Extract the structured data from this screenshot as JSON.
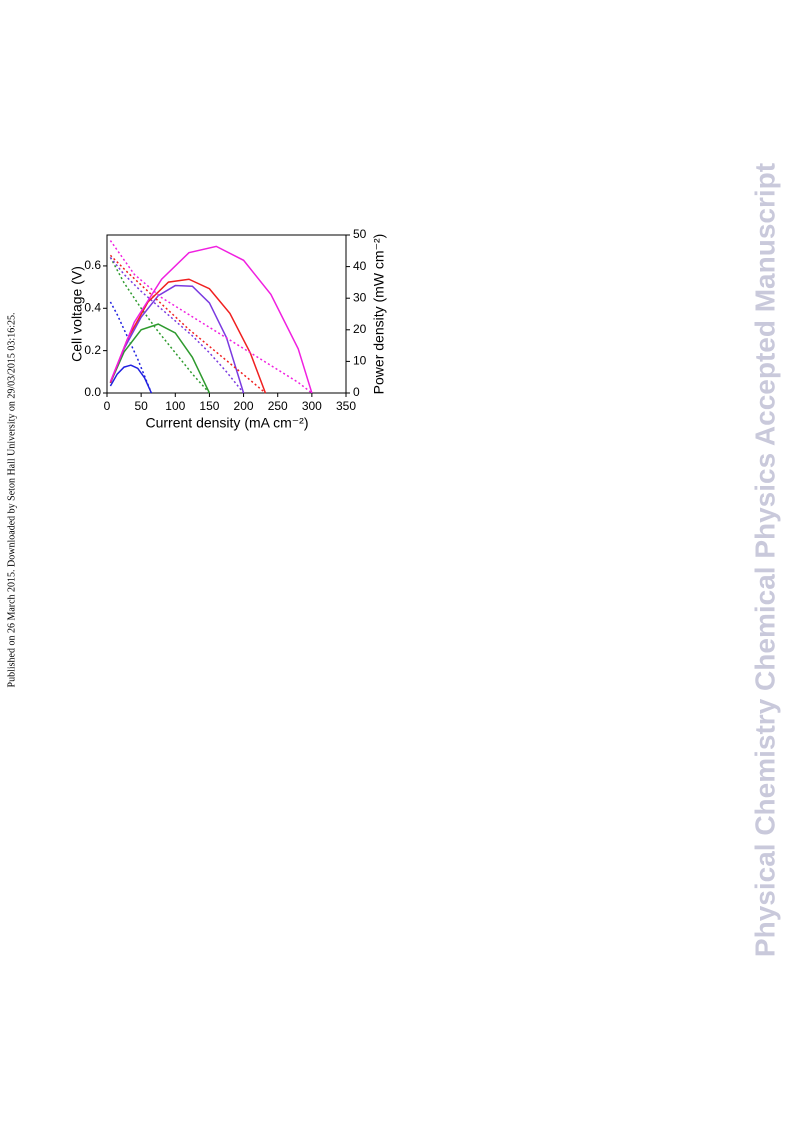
{
  "margin_note": "Published on 26 March 2015. Downloaded by Seton Hall University on 29/03/2015 03:16:25.",
  "watermark": "Physical Chemistry Chemical Physics Accepted Manuscript",
  "chart_data": {
    "type": "line",
    "x_label": "Current density (mA cm⁻²)",
    "y_label": "Cell voltage (V)",
    "y2_label": "Power density (mW cm⁻²)",
    "xlim": [
      0,
      350
    ],
    "xticks": [
      0,
      50,
      100,
      150,
      200,
      250,
      300,
      350
    ],
    "ylim": [
      0,
      0.746
    ],
    "yticks": [
      {
        "value": 0,
        "label": "0.0"
      },
      0.2,
      0.4,
      0.6
    ],
    "y2lim": [
      0,
      50
    ],
    "y2ticks": [
      0,
      10,
      20,
      30,
      40,
      50
    ],
    "series": [
      {
        "color": "#2020e0",
        "style": "dotted",
        "x": [
          5,
          15,
          25,
          35,
          45,
          55,
          65
        ],
        "values": [
          0.43,
          0.37,
          0.3,
          0.23,
          0.16,
          0.08,
          0
        ]
      },
      {
        "color": "#2020e0",
        "style": "solid",
        "axis": "y2",
        "x": [
          5,
          15,
          25,
          35,
          45,
          55,
          65
        ],
        "values": [
          2.2,
          6.0,
          8.2,
          8.8,
          7.8,
          4.8,
          0
        ]
      },
      {
        "color": "#2e9a2e",
        "style": "dotted",
        "x": [
          5,
          25,
          50,
          75,
          100,
          125,
          150
        ],
        "values": [
          0.64,
          0.52,
          0.4,
          0.29,
          0.19,
          0.09,
          0
        ]
      },
      {
        "color": "#2e9a2e",
        "style": "solid",
        "axis": "y2",
        "x": [
          5,
          25,
          50,
          75,
          100,
          125,
          150
        ],
        "values": [
          3.2,
          13,
          20,
          21.8,
          19,
          11.3,
          0
        ]
      },
      {
        "color": "#7a3ae0",
        "style": "dotted",
        "x": [
          5,
          25,
          50,
          75,
          100,
          125,
          150,
          175,
          200
        ],
        "values": [
          0.64,
          0.56,
          0.48,
          0.41,
          0.34,
          0.27,
          0.19,
          0.1,
          0
        ]
      },
      {
        "color": "#7a3ae0",
        "style": "solid",
        "axis": "y2",
        "x": [
          5,
          25,
          50,
          75,
          100,
          125,
          150,
          175,
          200
        ],
        "values": [
          3.2,
          14,
          24,
          30.8,
          34,
          33.8,
          28.5,
          17.5,
          0
        ]
      },
      {
        "color": "#f02020",
        "style": "dotted",
        "x": [
          5,
          30,
          60,
          90,
          120,
          150,
          180,
          210,
          232
        ],
        "values": [
          0.65,
          0.57,
          0.48,
          0.39,
          0.3,
          0.22,
          0.14,
          0.06,
          0
        ]
      },
      {
        "color": "#f02020",
        "style": "solid",
        "axis": "y2",
        "x": [
          5,
          30,
          60,
          90,
          120,
          150,
          180,
          210,
          232
        ],
        "values": [
          3.3,
          17.1,
          28.8,
          35.1,
          36,
          33,
          25.2,
          12.6,
          0
        ]
      },
      {
        "color": "#f020e0",
        "style": "dotted",
        "x": [
          5,
          40,
          80,
          120,
          160,
          200,
          240,
          280,
          300
        ],
        "values": [
          0.72,
          0.56,
          0.45,
          0.37,
          0.29,
          0.21,
          0.13,
          0.05,
          0
        ]
      },
      {
        "color": "#f020e0",
        "style": "solid",
        "axis": "y2",
        "x": [
          5,
          40,
          80,
          120,
          160,
          200,
          240,
          280,
          300
        ],
        "values": [
          3.6,
          22.4,
          36,
          44.4,
          46.4,
          42,
          31.2,
          14,
          0
        ]
      }
    ]
  }
}
